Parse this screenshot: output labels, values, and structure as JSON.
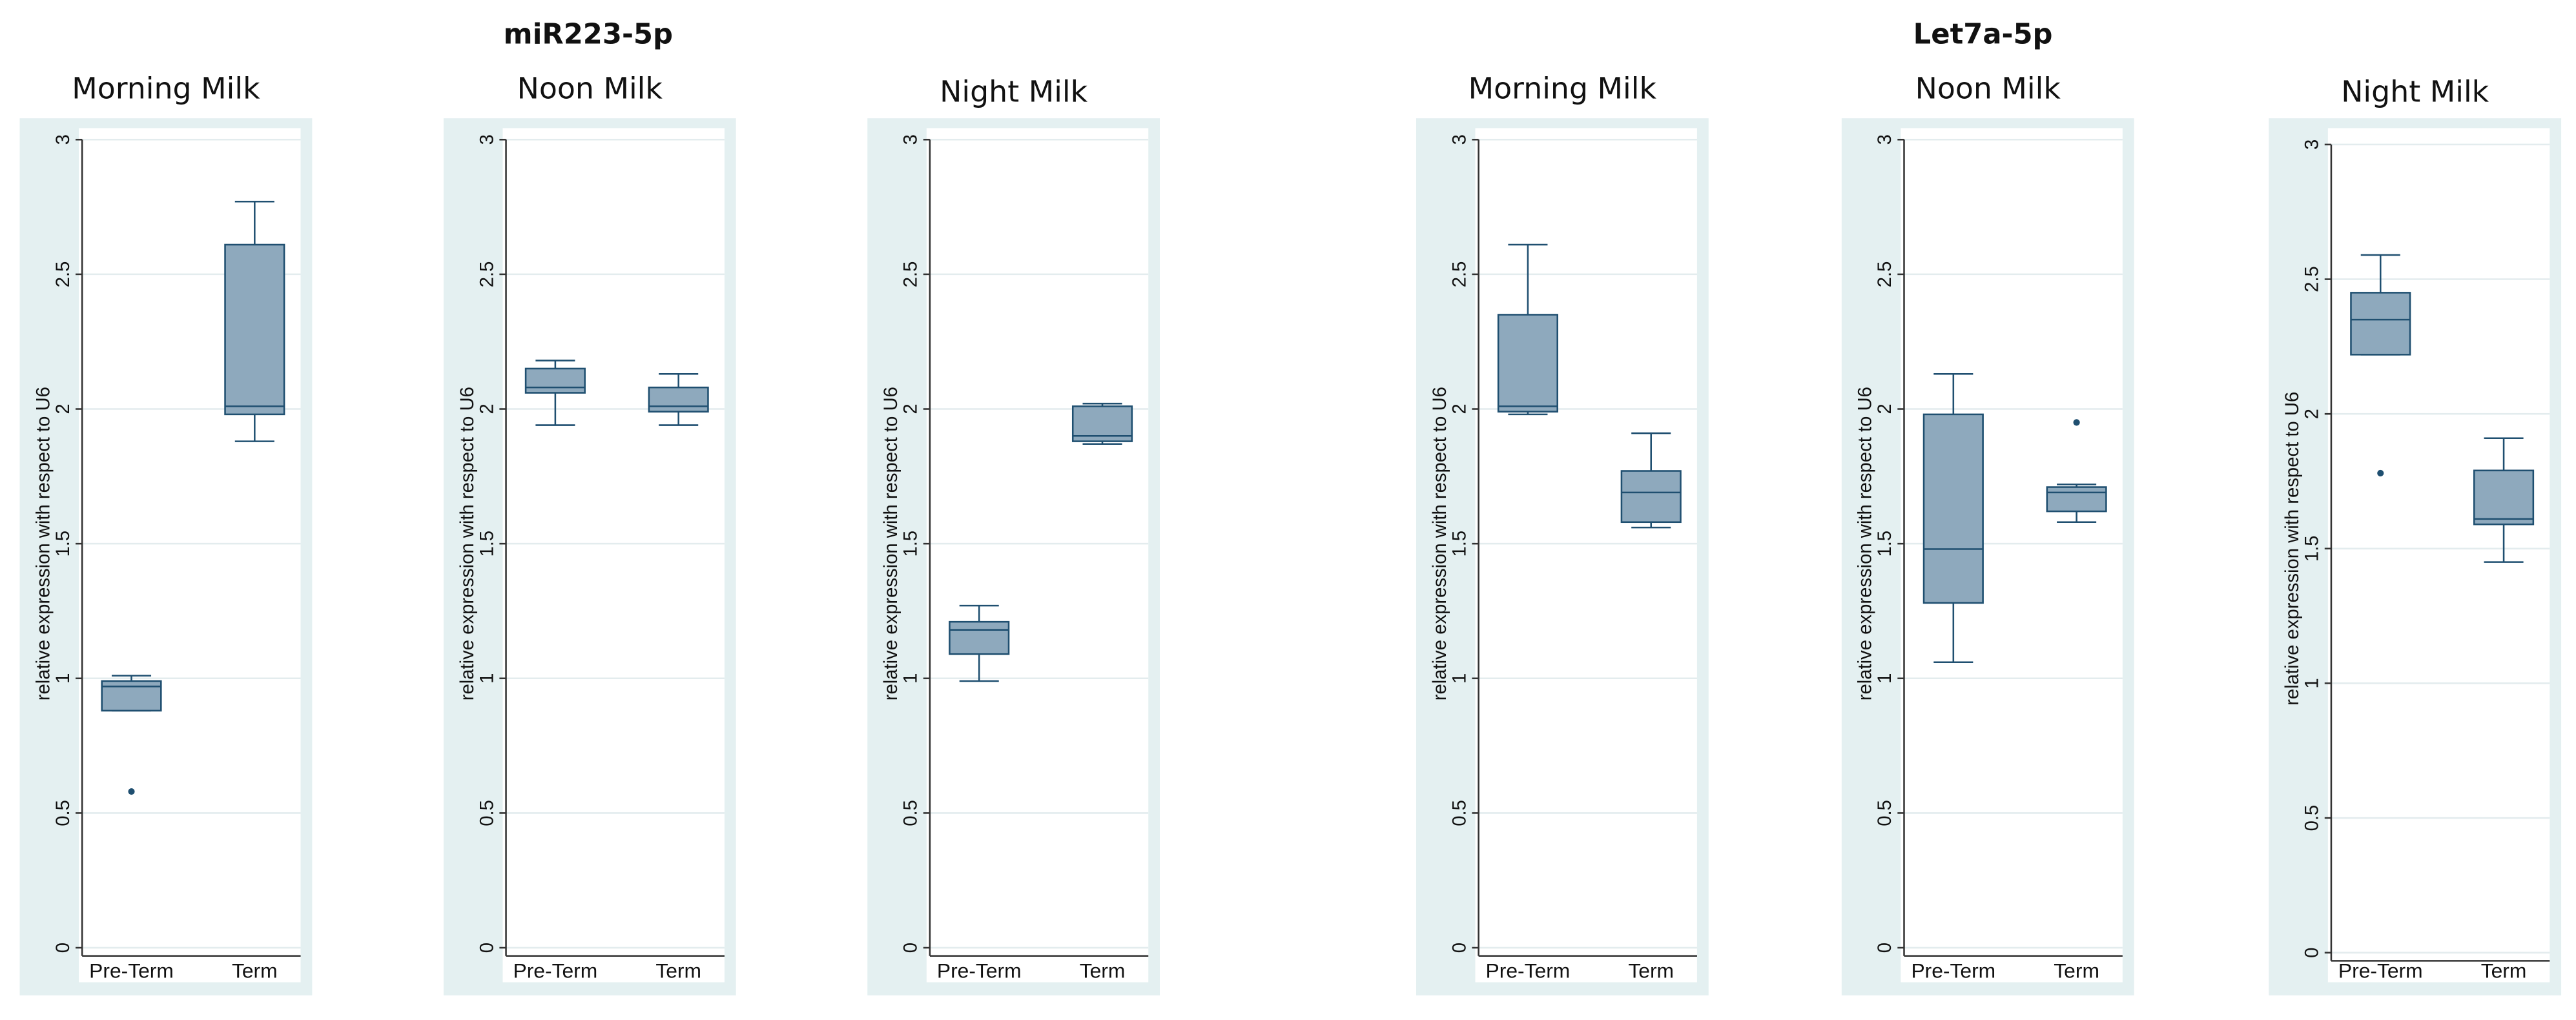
{
  "headings": [
    "miR223-5p",
    "Let7a-5p"
  ],
  "chart_data": [
    {
      "type": "box",
      "title": "Morning Milk",
      "ylabel": "relative expression with respect to U6",
      "categories": [
        "Pre-Term",
        "Term"
      ],
      "color": "#8ea9bd",
      "ylim": [
        0,
        3
      ],
      "yticks": [
        0,
        0.5,
        1,
        1.5,
        2,
        2.5,
        3
      ],
      "grid": true,
      "boxes": [
        {
          "min": 0.88,
          "q1": 0.88,
          "median": 0.97,
          "q3": 0.99,
          "max": 1.01,
          "outliers": [
            0.58
          ]
        },
        {
          "min": 1.88,
          "q1": 1.98,
          "median": 2.01,
          "q3": 2.61,
          "max": 2.77,
          "outliers": []
        }
      ]
    },
    {
      "type": "box",
      "title": "Noon Milk",
      "ylabel": "relative expression with respect to U6",
      "categories": [
        "Pre-Term",
        "Term"
      ],
      "color": "#8ea9bd",
      "ylim": [
        0,
        3
      ],
      "yticks": [
        0,
        0.5,
        1,
        1.5,
        2,
        2.5,
        3
      ],
      "grid": true,
      "boxes": [
        {
          "min": 1.94,
          "q1": 2.06,
          "median": 2.08,
          "q3": 2.15,
          "max": 2.18,
          "outliers": []
        },
        {
          "min": 1.94,
          "q1": 1.99,
          "median": 2.01,
          "q3": 2.08,
          "max": 2.13,
          "outliers": []
        }
      ]
    },
    {
      "type": "box",
      "title": "Night Milk",
      "ylabel": "relative expression with respect to U6",
      "categories": [
        "Pre-Term",
        "Term"
      ],
      "color": "#8ea9bd",
      "ylim": [
        0,
        3
      ],
      "yticks": [
        0,
        0.5,
        1,
        1.5,
        2,
        2.5,
        3
      ],
      "grid": true,
      "boxes": [
        {
          "min": 0.99,
          "q1": 1.09,
          "median": 1.18,
          "q3": 1.21,
          "max": 1.27,
          "outliers": []
        },
        {
          "min": 1.87,
          "q1": 1.88,
          "median": 1.9,
          "q3": 2.01,
          "max": 2.02,
          "outliers": []
        }
      ]
    },
    {
      "type": "box",
      "title": "Morning Milk",
      "ylabel": "relative expression with respect to U6",
      "categories": [
        "Pre-Term",
        "Term"
      ],
      "color": "#8ea9bd",
      "ylim": [
        0,
        3
      ],
      "yticks": [
        0,
        0.5,
        1,
        1.5,
        2,
        2.5,
        3
      ],
      "grid": true,
      "boxes": [
        {
          "min": 1.98,
          "q1": 1.99,
          "median": 2.01,
          "q3": 2.35,
          "max": 2.61,
          "outliers": []
        },
        {
          "min": 1.56,
          "q1": 1.58,
          "median": 1.69,
          "q3": 1.77,
          "max": 1.91,
          "outliers": []
        }
      ]
    },
    {
      "type": "box",
      "title": "Noon Milk",
      "ylabel": "relative expression with respect to U6",
      "categories": [
        "Pre-Term",
        "Term"
      ],
      "color": "#8ea9bd",
      "ylim": [
        0,
        3
      ],
      "yticks": [
        0,
        0.5,
        1,
        1.5,
        2,
        2.5,
        3
      ],
      "grid": true,
      "boxes": [
        {
          "min": 1.06,
          "q1": 1.28,
          "median": 1.48,
          "q3": 1.98,
          "max": 2.13,
          "outliers": []
        },
        {
          "min": 1.58,
          "q1": 1.62,
          "median": 1.69,
          "q3": 1.71,
          "max": 1.72,
          "outliers": [
            1.95
          ]
        }
      ]
    },
    {
      "type": "box",
      "title": "Night Milk",
      "ylabel": "relative expression with respect to U6",
      "categories": [
        "Pre-Term",
        "Term"
      ],
      "color": "#8ea9bd",
      "ylim": [
        0,
        3
      ],
      "yticks": [
        0,
        0.5,
        1,
        1.5,
        2,
        2.5,
        3
      ],
      "grid": true,
      "boxes": [
        {
          "min": 2.22,
          "q1": 2.22,
          "median": 2.35,
          "q3": 2.45,
          "max": 2.59,
          "outliers": [
            1.78
          ]
        },
        {
          "min": 1.45,
          "q1": 1.59,
          "median": 1.61,
          "q3": 1.79,
          "max": 1.91,
          "outliers": []
        }
      ]
    }
  ]
}
